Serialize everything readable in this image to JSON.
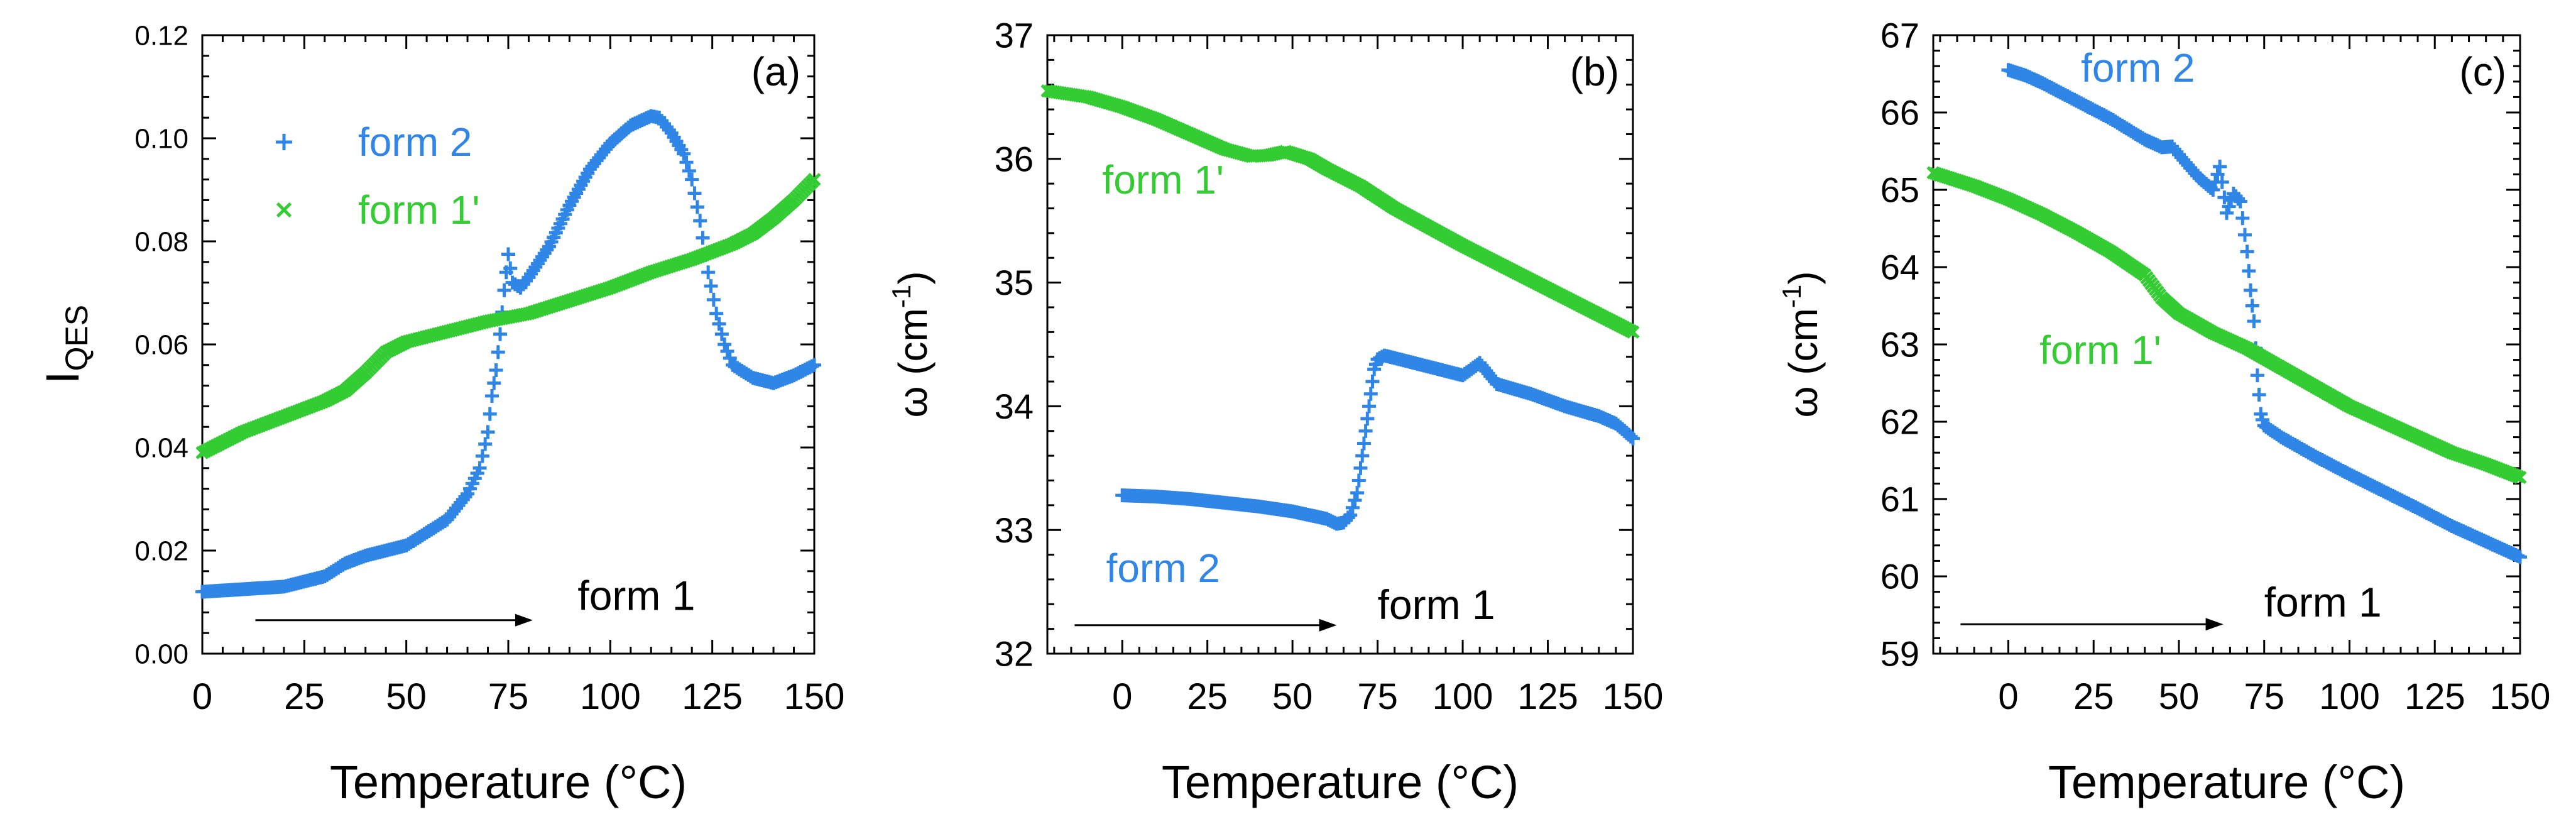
{
  "colors": {
    "form2": "#2f86e6",
    "form1p": "#33cc33",
    "axis": "#000000"
  },
  "chart_data": [
    {
      "type": "scatter",
      "panel_label": "(a)",
      "ylabel_main": "I",
      "ylabel_sub": "QES",
      "xlabel": "Temperature (°C)",
      "xlim": [
        0,
        150
      ],
      "ylim": [
        0,
        0.12
      ],
      "xticks": [
        "0",
        "25",
        "50",
        "75",
        "100",
        "125",
        "150"
      ],
      "xtick_values": [
        0,
        25,
        50,
        75,
        100,
        125,
        150
      ],
      "yticks": [
        "0.00",
        "0.02",
        "0.04",
        "0.06",
        "0.08",
        "0.10",
        "0.12"
      ],
      "ytick_values": [
        0,
        0.02,
        0.04,
        0.06,
        0.08,
        0.1,
        0.12
      ],
      "legend": [
        {
          "label": "form 2",
          "marker": "+",
          "series": "form2"
        },
        {
          "label": "form 1'",
          "marker": "x",
          "series": "form1p"
        }
      ],
      "annotation": {
        "text": "form 1",
        "arrow_from": 13,
        "arrow_to": 81,
        "arrow_y": 0.0065,
        "text_x": 92,
        "text_y": 0.0085
      },
      "series": [
        {
          "name": "form 2",
          "key": "form2",
          "marker": "+",
          "x": [
            0,
            10,
            20,
            30,
            35,
            40,
            50,
            55,
            60,
            65,
            68,
            70,
            71,
            72,
            73,
            74,
            75,
            76,
            78,
            80,
            85,
            90,
            95,
            100,
            105,
            110,
            112,
            115,
            118,
            120,
            122,
            124,
            126,
            128,
            130,
            135,
            140,
            145,
            150
          ],
          "y": [
            0.012,
            0.0125,
            0.013,
            0.015,
            0.0175,
            0.019,
            0.021,
            0.0235,
            0.026,
            0.031,
            0.036,
            0.043,
            0.05,
            0.055,
            0.062,
            0.0705,
            0.0775,
            0.072,
            0.071,
            0.073,
            0.079,
            0.087,
            0.094,
            0.099,
            0.1025,
            0.1043,
            0.104,
            0.101,
            0.097,
            0.092,
            0.084,
            0.074,
            0.066,
            0.06,
            0.056,
            0.0535,
            0.0525,
            0.054,
            0.056
          ]
        },
        {
          "name": "form 1'",
          "key": "form1p",
          "marker": "x",
          "x": [
            0,
            10,
            20,
            30,
            35,
            40,
            45,
            50,
            60,
            70,
            80,
            90,
            100,
            110,
            120,
            130,
            135,
            140,
            145,
            150
          ],
          "y": [
            0.039,
            0.043,
            0.046,
            0.049,
            0.051,
            0.0545,
            0.0585,
            0.0605,
            0.0625,
            0.0645,
            0.066,
            0.0685,
            0.071,
            0.074,
            0.0765,
            0.0795,
            0.0815,
            0.0845,
            0.088,
            0.092
          ]
        }
      ],
      "series_labels": []
    },
    {
      "type": "scatter",
      "panel_label": "(b)",
      "ylabel_main": "ω (cm",
      "ylabel_sup": "-1",
      "ylabel_end": ")",
      "xlabel": "Temperature (°C)",
      "xlim": [
        -22,
        150
      ],
      "ylim": [
        32,
        37
      ],
      "xticks": [
        "0",
        "25",
        "50",
        "75",
        "100",
        "125",
        "150"
      ],
      "xtick_values": [
        0,
        25,
        50,
        75,
        100,
        125,
        150
      ],
      "yticks": [
        "32",
        "33",
        "34",
        "35",
        "36",
        "37"
      ],
      "ytick_values": [
        32,
        33,
        34,
        35,
        36,
        37
      ],
      "legend": [],
      "annotation": {
        "text": "form 1",
        "arrow_from": -14,
        "arrow_to": 63,
        "arrow_y": 32.23,
        "text_x": 75,
        "text_y": 32.28
      },
      "series": [
        {
          "name": "form 2",
          "key": "form2",
          "marker": "+",
          "x": [
            0,
            10,
            20,
            30,
            40,
            50,
            55,
            60,
            63,
            65,
            67,
            69,
            70,
            71,
            72,
            73,
            74,
            75,
            77,
            80,
            90,
            100,
            105,
            110,
            120,
            130,
            140,
            145,
            150
          ],
          "y": [
            33.28,
            33.27,
            33.25,
            33.22,
            33.19,
            33.15,
            33.12,
            33.09,
            33.05,
            33.06,
            33.12,
            33.3,
            33.5,
            33.7,
            33.9,
            34.1,
            34.3,
            34.38,
            34.41,
            34.39,
            34.32,
            34.25,
            34.35,
            34.18,
            34.1,
            34.0,
            33.92,
            33.86,
            33.74
          ]
        },
        {
          "name": "form 1'",
          "key": "form1p",
          "marker": "x",
          "x": [
            -22,
            -10,
            0,
            10,
            20,
            30,
            38,
            43,
            48,
            55,
            60,
            70,
            80,
            90,
            100,
            110,
            120,
            130,
            140,
            150
          ],
          "y": [
            36.55,
            36.5,
            36.42,
            36.32,
            36.2,
            36.08,
            36.02,
            36.03,
            36.06,
            36.0,
            35.92,
            35.78,
            35.6,
            35.45,
            35.3,
            35.16,
            35.02,
            34.88,
            34.74,
            34.6
          ]
        }
      ],
      "series_labels": [
        {
          "text": "form 1'",
          "key": "form1p",
          "x": 12,
          "y": 35.72
        },
        {
          "text": "form 2",
          "key": "form2",
          "x": 12,
          "y": 32.58
        }
      ]
    },
    {
      "type": "scatter",
      "panel_label": "(c)",
      "ylabel_main": "ω (cm",
      "ylabel_sup": "-1",
      "ylabel_end": ")",
      "xlabel": "Temperature (°C)",
      "xlim": [
        -22,
        150
      ],
      "ylim": [
        59,
        67
      ],
      "xticks": [
        "0",
        "25",
        "50",
        "75",
        "100",
        "125",
        "150"
      ],
      "xtick_values": [
        0,
        25,
        50,
        75,
        100,
        125,
        150
      ],
      "yticks": [
        "59",
        "60",
        "61",
        "62",
        "63",
        "64",
        "65",
        "66",
        "67"
      ],
      "ytick_values": [
        59,
        60,
        61,
        62,
        63,
        64,
        65,
        66,
        67
      ],
      "legend": [],
      "annotation": {
        "text": "form 1",
        "arrow_from": -14,
        "arrow_to": 63,
        "arrow_y": 59.38,
        "text_x": 75,
        "text_y": 59.48
      },
      "series": [
        {
          "name": "form 2",
          "key": "form2",
          "marker": "+",
          "x": [
            0,
            5,
            10,
            20,
            30,
            40,
            45,
            48,
            52,
            56,
            60,
            62,
            64,
            66,
            68,
            70,
            71,
            72,
            73,
            74,
            75,
            80,
            90,
            100,
            110,
            120,
            130,
            140,
            150
          ],
          "y": [
            66.55,
            66.48,
            66.38,
            66.15,
            65.92,
            65.65,
            65.55,
            65.56,
            65.35,
            65.15,
            65.0,
            65.3,
            64.7,
            64.95,
            64.85,
            64.2,
            63.7,
            63.3,
            62.6,
            62.1,
            61.95,
            61.8,
            61.55,
            61.32,
            61.1,
            60.88,
            60.65,
            60.45,
            60.25
          ]
        },
        {
          "name": "form 1'",
          "key": "form1p",
          "marker": "x",
          "x": [
            -22,
            -10,
            0,
            10,
            20,
            30,
            40,
            45,
            50,
            60,
            70,
            80,
            90,
            100,
            110,
            120,
            130,
            140,
            150
          ],
          "y": [
            65.22,
            65.05,
            64.88,
            64.68,
            64.45,
            64.2,
            63.9,
            63.6,
            63.4,
            63.15,
            62.95,
            62.7,
            62.45,
            62.2,
            62.0,
            61.8,
            61.6,
            61.45,
            61.28
          ]
        }
      ],
      "series_labels": [
        {
          "text": "form 2",
          "key": "form2",
          "x": 38,
          "y": 66.4
        },
        {
          "text": "form 1'",
          "key": "form1p",
          "x": 27,
          "y": 62.75
        }
      ]
    }
  ]
}
